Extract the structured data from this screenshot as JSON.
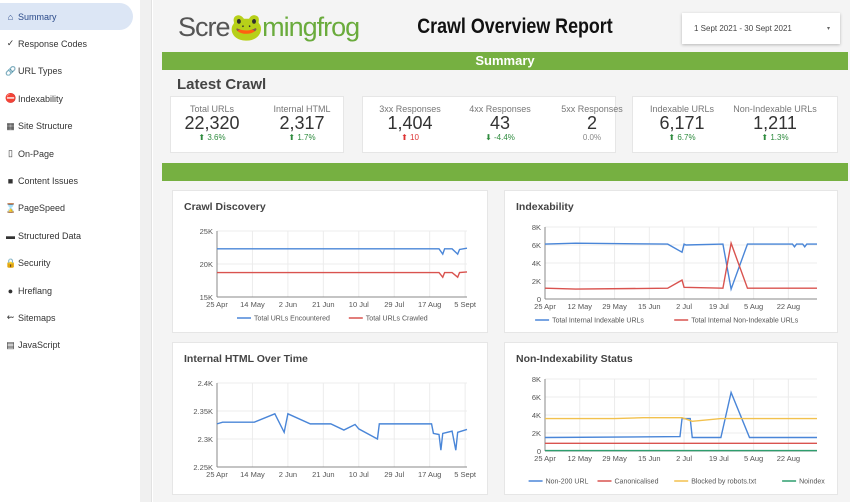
{
  "sidebar": {
    "items": [
      {
        "label": "Summary",
        "icon": "home-icon",
        "glyph": "⌂",
        "active": true
      },
      {
        "label": "Response Codes",
        "icon": "check-icon",
        "glyph": "✓"
      },
      {
        "label": "URL Types",
        "icon": "link-icon",
        "glyph": "🔗"
      },
      {
        "label": "Indexability",
        "icon": "no-entry-icon",
        "glyph": "⛔"
      },
      {
        "label": "Site Structure",
        "icon": "structure-icon",
        "glyph": "▦"
      },
      {
        "label": "On-Page",
        "icon": "page-icon",
        "glyph": "▯"
      },
      {
        "label": "Content Issues",
        "icon": "book-icon",
        "glyph": "■"
      },
      {
        "label": "PageSpeed",
        "icon": "hourglass-icon",
        "glyph": "⌛"
      },
      {
        "label": "Structured Data",
        "icon": "laptop-icon",
        "glyph": "▬"
      },
      {
        "label": "Security",
        "icon": "lock-icon",
        "glyph": "🔒"
      },
      {
        "label": "Hreflang",
        "icon": "globe-icon",
        "glyph": "●"
      },
      {
        "label": "Sitemaps",
        "icon": "map-icon",
        "glyph": "⇜"
      },
      {
        "label": "JavaScript",
        "icon": "scroll-icon",
        "glyph": "▤"
      }
    ]
  },
  "header": {
    "logo": "Screamingfrog",
    "logo_a": "Scre",
    "logo_b": "mingfrog",
    "title": "Crawl Overview Report",
    "date_range": "1 Sept 2021 - 30 Sept 2021",
    "caret": "▾"
  },
  "section1": "Summary",
  "latest": "Latest Crawl",
  "kpis": [
    {
      "label": "Total URLs",
      "value": "22,320",
      "delta": "⬆ 3.6%",
      "tone": "up"
    },
    {
      "label": "Internal HTML",
      "value": "2,317",
      "delta": "⬆ 1.7%",
      "tone": "up"
    },
    {
      "label": "3xx Responses",
      "value": "1,404",
      "delta": "⬆ 10",
      "tone": "red"
    },
    {
      "label": "4xx Responses",
      "value": "43",
      "delta": "⬇ -4.4%",
      "tone": "up"
    },
    {
      "label": "5xx Responses",
      "value": "2",
      "delta": "0.0%",
      "tone": "gray"
    },
    {
      "label": "Indexable URLs",
      "value": "6,171",
      "delta": "⬆ 6.7%",
      "tone": "up"
    },
    {
      "label": "Non-Indexable URLs",
      "value": "1,211",
      "delta": "⬆ 1.3%",
      "tone": "up"
    }
  ],
  "colors": {
    "green": "#76b041",
    "blue": "#4a86d8",
    "red": "#d9534f",
    "yellow": "#f2c14e",
    "teal": "#2e9e6e"
  },
  "chart_data": [
    {
      "type": "line",
      "title": "Crawl Discovery",
      "ylim": [
        15000,
        25000
      ],
      "yticks": [
        "15K",
        "20K",
        "25K"
      ],
      "yvals": [
        15000,
        20000,
        25000
      ],
      "xlim": [
        "2021-04-25",
        "2021-09-06"
      ],
      "xticks": [
        "25 Apr",
        "14 May",
        "2 Jun",
        "21 Jun",
        "10 Jul",
        "29 Jul",
        "17 Aug",
        "5 Sept"
      ],
      "xtickdates": [
        "2021-04-25",
        "2021-05-14",
        "2021-06-02",
        "2021-06-21",
        "2021-07-10",
        "2021-07-29",
        "2021-08-17",
        "2021-09-05"
      ],
      "series": [
        {
          "name": "Total URLs Encountered",
          "color": "#4a86d8",
          "points": [
            [
              "2021-04-25",
              22300
            ],
            [
              "2021-08-22",
              22300
            ],
            [
              "2021-08-24",
              21500
            ],
            [
              "2021-08-25",
              22300
            ],
            [
              "2021-08-29",
              22300
            ],
            [
              "2021-09-01",
              21500
            ],
            [
              "2021-09-02",
              22200
            ],
            [
              "2021-09-06",
              22400
            ]
          ]
        },
        {
          "name": "Total URLs Crawled",
          "color": "#d9534f",
          "points": [
            [
              "2021-04-25",
              18700
            ],
            [
              "2021-08-22",
              18700
            ],
            [
              "2021-08-24",
              18000
            ],
            [
              "2021-08-25",
              18700
            ],
            [
              "2021-08-29",
              18700
            ],
            [
              "2021-09-01",
              18000
            ],
            [
              "2021-09-02",
              18700
            ],
            [
              "2021-09-06",
              18800
            ]
          ]
        }
      ]
    },
    {
      "type": "line",
      "title": "Indexability",
      "ylim": [
        0,
        8000
      ],
      "yticks": [
        "0",
        "2K",
        "4K",
        "6K",
        "8K"
      ],
      "yvals": [
        0,
        2000,
        4000,
        6000,
        8000
      ],
      "xlim": [
        "2021-04-25",
        "2021-09-05"
      ],
      "xticks": [
        "25 Apr",
        "12 May",
        "29 May",
        "15 Jun",
        "2 Jul",
        "19 Jul",
        "5 Aug",
        "22 Aug"
      ],
      "xtickdates": [
        "2021-04-25",
        "2021-05-12",
        "2021-05-29",
        "2021-06-15",
        "2021-07-02",
        "2021-07-19",
        "2021-08-05",
        "2021-08-22"
      ],
      "series": [
        {
          "name": "Total Internal Indexable URLs",
          "color": "#4a86d8",
          "points": [
            [
              "2021-04-25",
              6100
            ],
            [
              "2021-05-10",
              6200
            ],
            [
              "2021-06-24",
              6100
            ],
            [
              "2021-07-01",
              5200
            ],
            [
              "2021-07-02",
              6100
            ],
            [
              "2021-07-03",
              6000
            ],
            [
              "2021-07-21",
              6100
            ],
            [
              "2021-07-25",
              1100
            ],
            [
              "2021-08-02",
              6100
            ],
            [
              "2021-08-24",
              6100
            ],
            [
              "2021-08-25",
              5800
            ],
            [
              "2021-08-26",
              6100
            ],
            [
              "2021-08-29",
              6100
            ],
            [
              "2021-08-30",
              5800
            ],
            [
              "2021-08-31",
              6100
            ],
            [
              "2021-09-05",
              6100
            ]
          ]
        },
        {
          "name": "Total Internal Non-Indexable URLs",
          "color": "#d9534f",
          "points": [
            [
              "2021-04-25",
              1200
            ],
            [
              "2021-05-10",
              1100
            ],
            [
              "2021-06-24",
              1200
            ],
            [
              "2021-07-01",
              2100
            ],
            [
              "2021-07-02",
              1300
            ],
            [
              "2021-07-21",
              1200
            ],
            [
              "2021-07-25",
              6200
            ],
            [
              "2021-08-02",
              1200
            ],
            [
              "2021-09-05",
              1200
            ]
          ]
        }
      ]
    },
    {
      "type": "line",
      "title": "Internal HTML Over Time",
      "ylim": [
        2250,
        2400
      ],
      "yticks": [
        "2.25K",
        "2.3K",
        "2.35K",
        "2.4K"
      ],
      "yvals": [
        2250,
        2300,
        2350,
        2400
      ],
      "xlim": [
        "2021-04-25",
        "2021-09-06"
      ],
      "xticks": [
        "25 Apr",
        "14 May",
        "2 Jun",
        "21 Jun",
        "10 Jul",
        "29 Jul",
        "17 Aug",
        "5 Sept"
      ],
      "xtickdates": [
        "2021-04-25",
        "2021-05-14",
        "2021-06-02",
        "2021-06-21",
        "2021-07-10",
        "2021-07-29",
        "2021-08-17",
        "2021-09-05"
      ],
      "series": [
        {
          "color": "#4a86d8",
          "points": [
            [
              "2021-04-25",
              2327
            ],
            [
              "2021-04-28",
              2330
            ],
            [
              "2021-05-15",
              2330
            ],
            [
              "2021-05-26",
              2345
            ],
            [
              "2021-05-31",
              2312
            ],
            [
              "2021-06-02",
              2345
            ],
            [
              "2021-06-14",
              2327
            ],
            [
              "2021-06-25",
              2327
            ],
            [
              "2021-07-02",
              2316
            ],
            [
              "2021-07-08",
              2326
            ],
            [
              "2021-07-10",
              2318
            ],
            [
              "2021-07-20",
              2300
            ],
            [
              "2021-07-21",
              2327
            ],
            [
              "2021-08-18",
              2327
            ],
            [
              "2021-08-19",
              2310
            ],
            [
              "2021-08-22",
              2308
            ],
            [
              "2021-08-23",
              2280
            ],
            [
              "2021-08-24",
              2310
            ],
            [
              "2021-08-29",
              2314
            ],
            [
              "2021-08-31",
              2280
            ],
            [
              "2021-09-01",
              2312
            ],
            [
              "2021-09-06",
              2317
            ]
          ]
        }
      ]
    },
    {
      "type": "line",
      "title": "Non-Indexability Status",
      "ylim": [
        0,
        8000
      ],
      "yticks": [
        "0",
        "2K",
        "4K",
        "6K",
        "8K"
      ],
      "yvals": [
        0,
        2000,
        4000,
        6000,
        8000
      ],
      "xlim": [
        "2021-04-25",
        "2021-09-05"
      ],
      "xticks": [
        "25 Apr",
        "12 May",
        "29 May",
        "15 Jun",
        "2 Jul",
        "19 Jul",
        "5 Aug",
        "22 Aug"
      ],
      "xtickdates": [
        "2021-04-25",
        "2021-05-12",
        "2021-05-29",
        "2021-06-15",
        "2021-07-02",
        "2021-07-19",
        "2021-08-05",
        "2021-08-22"
      ],
      "series": [
        {
          "name": "Non-200 URL",
          "color": "#4a86d8",
          "points": [
            [
              "2021-04-25",
              1500
            ],
            [
              "2021-06-30",
              1600
            ],
            [
              "2021-07-01",
              3600
            ],
            [
              "2021-07-05",
              3600
            ],
            [
              "2021-07-06",
              1500
            ],
            [
              "2021-07-20",
              1500
            ],
            [
              "2021-07-25",
              6500
            ],
            [
              "2021-08-03",
              1500
            ],
            [
              "2021-09-05",
              1500
            ]
          ]
        },
        {
          "name": "Canonicalised",
          "color": "#d9534f",
          "points": [
            [
              "2021-04-25",
              850
            ],
            [
              "2021-09-05",
              850
            ]
          ]
        },
        {
          "name": "Blocked by robots.txt",
          "color": "#f2c14e",
          "points": [
            [
              "2021-04-25",
              3600
            ],
            [
              "2021-05-29",
              3600
            ],
            [
              "2021-06-12",
              3700
            ],
            [
              "2021-07-01",
              3700
            ],
            [
              "2021-07-06",
              3300
            ],
            [
              "2021-07-20",
              3600
            ],
            [
              "2021-09-05",
              3600
            ]
          ]
        },
        {
          "name": "Noindex",
          "color": "#2e9e6e",
          "points": [
            [
              "2021-04-25",
              50
            ],
            [
              "2021-09-05",
              50
            ]
          ]
        }
      ]
    }
  ]
}
